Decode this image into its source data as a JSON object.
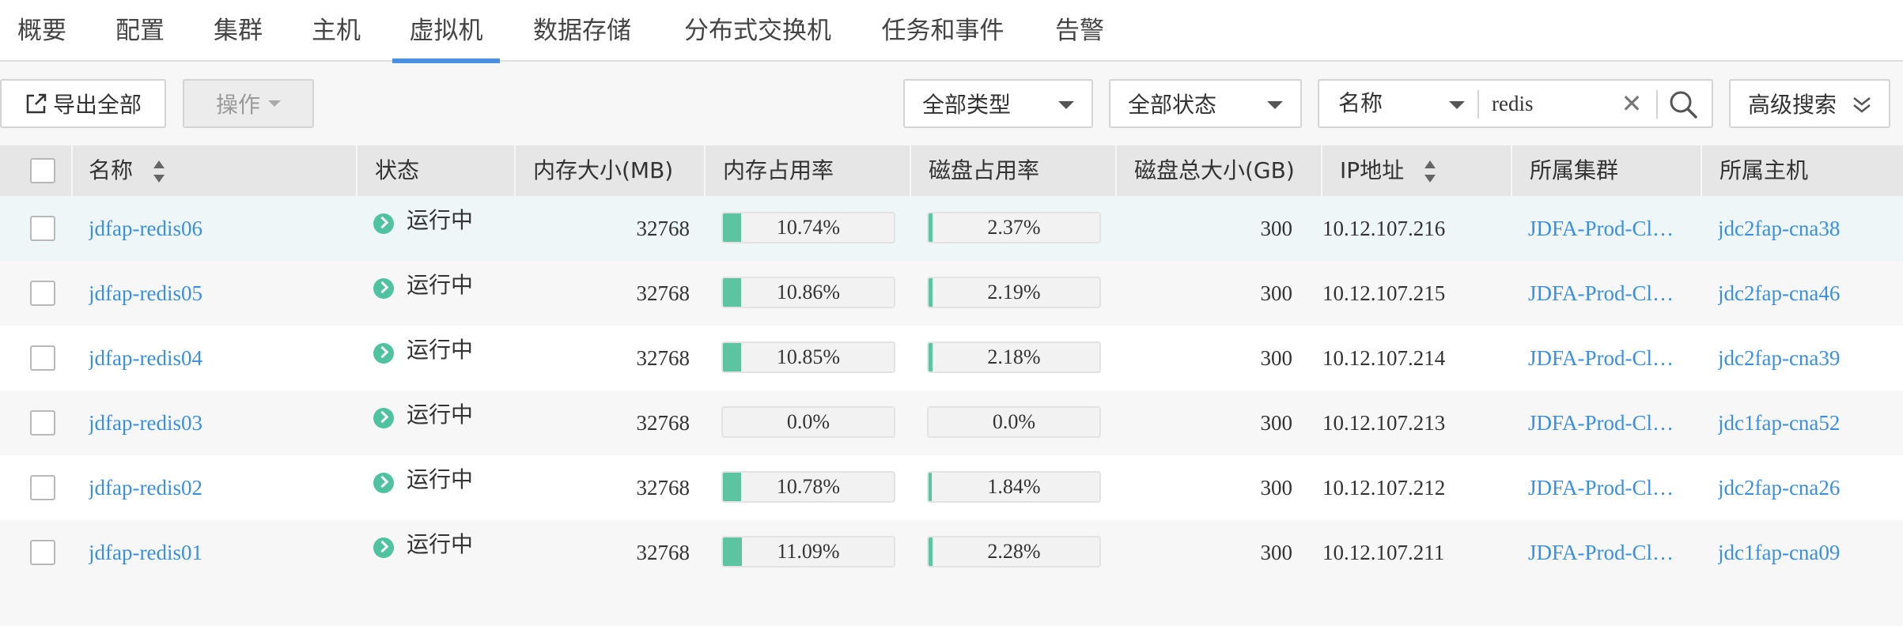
{
  "tabs": [
    "概要",
    "配置",
    "集群",
    "主机",
    "虚拟机",
    "数据存储",
    "分布式交换机",
    "任务和事件",
    "告警"
  ],
  "active_tab": 4,
  "toolbar": {
    "export_label": "导出全部",
    "actions_label": "操作",
    "type_filter": "全部类型",
    "status_filter": "全部状态",
    "search_field": "名称",
    "search_value": "redis",
    "advanced_search_label": "高级搜索"
  },
  "columns": [
    "名称",
    "状态",
    "内存大小(MB)",
    "内存占用率",
    "磁盘占用率",
    "磁盘总大小(GB)",
    "IP地址",
    "所属集群",
    "所属主机"
  ],
  "colors": {
    "accent": "#4a90e2",
    "link": "#3b8fe0",
    "bar_fill": "#5cc4a0",
    "status_running": "#4fc3a0"
  },
  "rows": [
    {
      "name": "jdfap-redis06",
      "status": "运行中",
      "memory_mb": "32768",
      "mem_usage": "10.74%",
      "mem_pct": 10.74,
      "disk_usage": "2.37%",
      "disk_pct": 2.37,
      "disk_gb": "300",
      "ip": "10.12.107.216",
      "cluster": "JDFA-Prod-Cl…",
      "host": "jdc2fap-cna38"
    },
    {
      "name": "jdfap-redis05",
      "status": "运行中",
      "memory_mb": "32768",
      "mem_usage": "10.86%",
      "mem_pct": 10.86,
      "disk_usage": "2.19%",
      "disk_pct": 2.19,
      "disk_gb": "300",
      "ip": "10.12.107.215",
      "cluster": "JDFA-Prod-Cl…",
      "host": "jdc2fap-cna46"
    },
    {
      "name": "jdfap-redis04",
      "status": "运行中",
      "memory_mb": "32768",
      "mem_usage": "10.85%",
      "mem_pct": 10.85,
      "disk_usage": "2.18%",
      "disk_pct": 2.18,
      "disk_gb": "300",
      "ip": "10.12.107.214",
      "cluster": "JDFA-Prod-Cl…",
      "host": "jdc2fap-cna39"
    },
    {
      "name": "jdfap-redis03",
      "status": "运行中",
      "memory_mb": "32768",
      "mem_usage": "0.0%",
      "mem_pct": 0,
      "disk_usage": "0.0%",
      "disk_pct": 0,
      "disk_gb": "300",
      "ip": "10.12.107.213",
      "cluster": "JDFA-Prod-Cl…",
      "host": "jdc1fap-cna52"
    },
    {
      "name": "jdfap-redis02",
      "status": "运行中",
      "memory_mb": "32768",
      "mem_usage": "10.78%",
      "mem_pct": 10.78,
      "disk_usage": "1.84%",
      "disk_pct": 1.84,
      "disk_gb": "300",
      "ip": "10.12.107.212",
      "cluster": "JDFA-Prod-Cl…",
      "host": "jdc2fap-cna26"
    },
    {
      "name": "jdfap-redis01",
      "status": "运行中",
      "memory_mb": "32768",
      "mem_usage": "11.09%",
      "mem_pct": 11.09,
      "disk_usage": "2.28%",
      "disk_pct": 2.28,
      "disk_gb": "300",
      "ip": "10.12.107.211",
      "cluster": "JDFA-Prod-Cl…",
      "host": "jdc1fap-cna09"
    }
  ]
}
